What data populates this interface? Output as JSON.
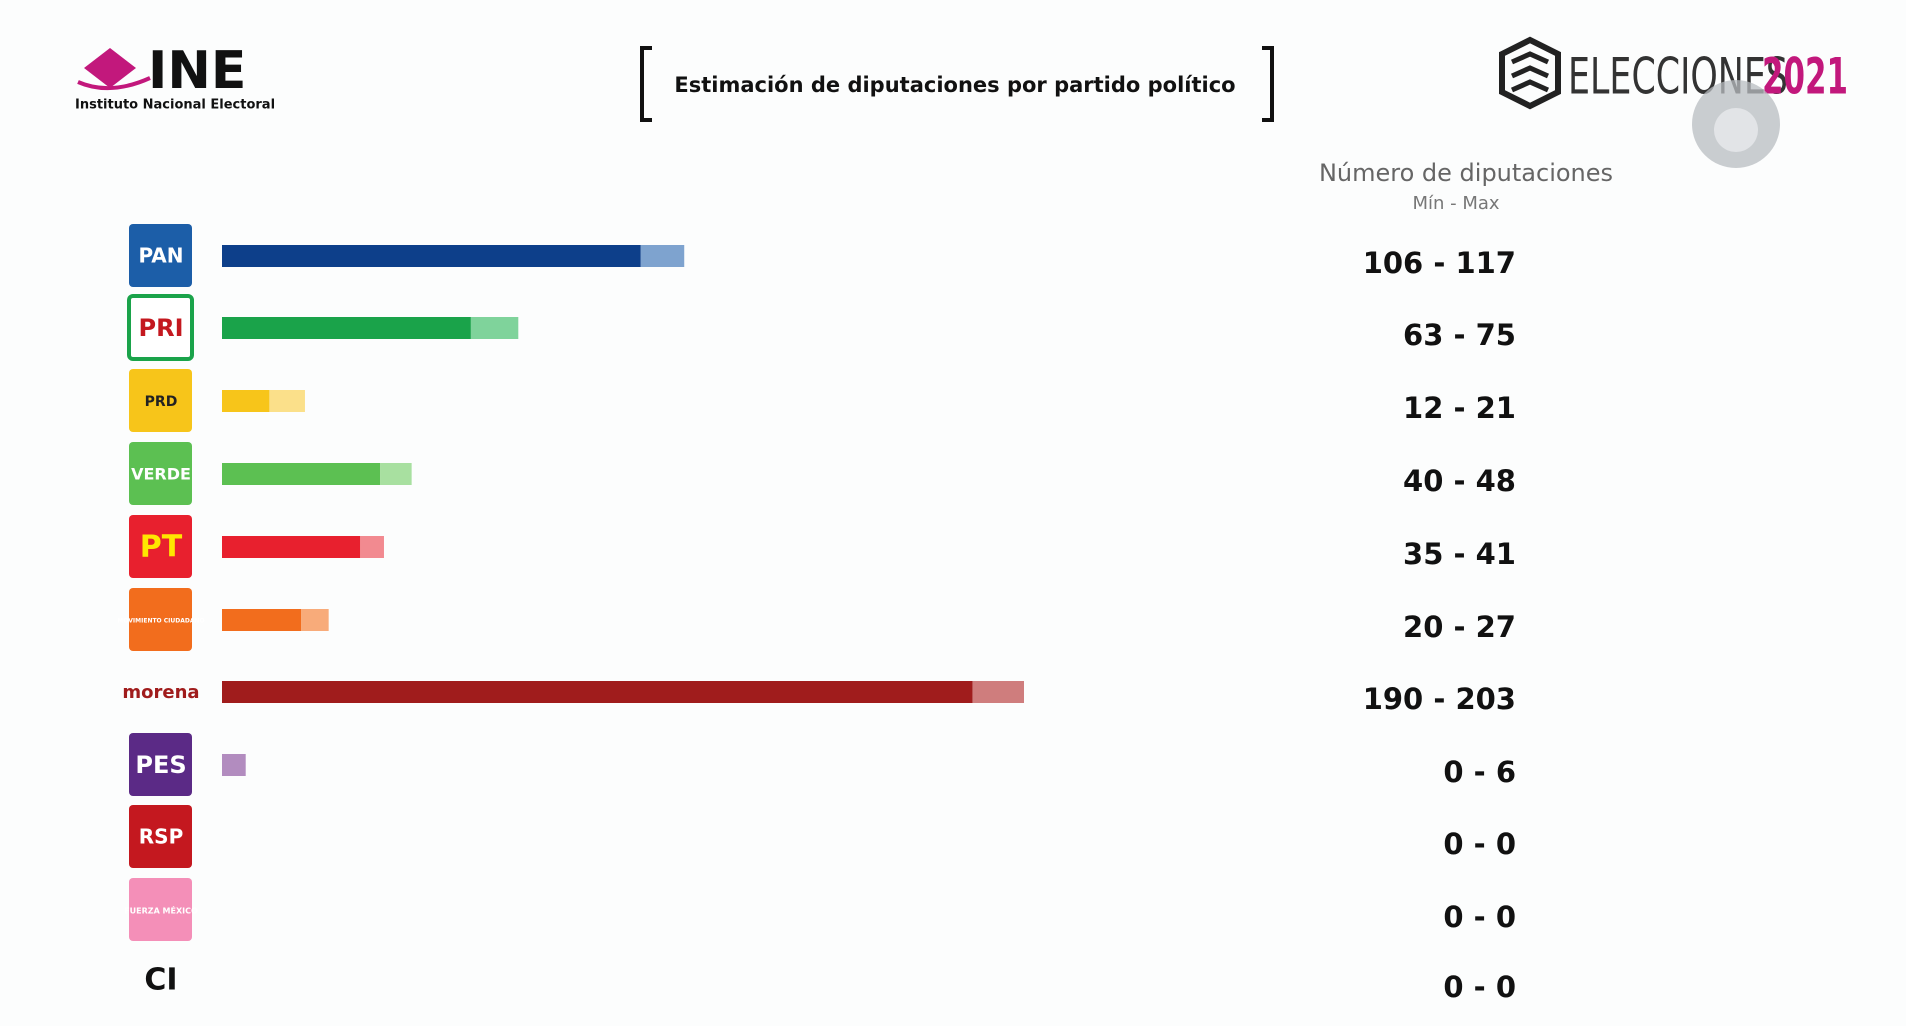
{
  "header": {
    "logo_text": "INE",
    "logo_subtitle": "Instituto Nacional Electoral",
    "brand": "ELECCIONES",
    "brand_year": "2021"
  },
  "chart_data": {
    "type": "range-bar",
    "title": "Estimación de diputaciones por partido político",
    "value_axis_title": "Número de diputaciones",
    "value_axis_subtitle": "Mín - Max",
    "categories": [
      "PAN",
      "PRI",
      "PRD",
      "VERDE",
      "PT",
      "MOVIMIENTO CIUDADANO",
      "morena",
      "PES",
      "RSP",
      "FUERZA MÉXICO",
      "CI"
    ],
    "series": [
      {
        "values": [
          106,
          63,
          12,
          40,
          35,
          20,
          190,
          0,
          0,
          0,
          0
        ],
        "colors": [
          "#0d3f8a",
          "#1aa34a",
          "#f7c51a",
          "#5cc052",
          "#e8202e",
          "#f26d1d",
          "#a01c1c",
          "#7b2d8a",
          "#c4181f",
          "#f48fb8",
          "#333333"
        ]
      },
      {
        "values": [
          117,
          75,
          21,
          48,
          41,
          27,
          203,
          6,
          0,
          0,
          0
        ],
        "colors": [
          "#7ea3cf",
          "#7fd39b",
          "#fbe08a",
          "#a8e0a0",
          "#f28a90",
          "#f8ab7a",
          "#cf7d7d",
          "#b28cbf",
          "#e08a8e",
          "#f8c4da",
          "#999999"
        ]
      }
    ],
    "value_labels": [
      "106 - 117",
      "63 - 75",
      "12 - 21",
      "40 - 48",
      "35 - 41",
      "20 - 27",
      "190 - 203",
      "0 - 6",
      "0 - 0",
      "0 - 0",
      "0 - 0"
    ]
  }
}
